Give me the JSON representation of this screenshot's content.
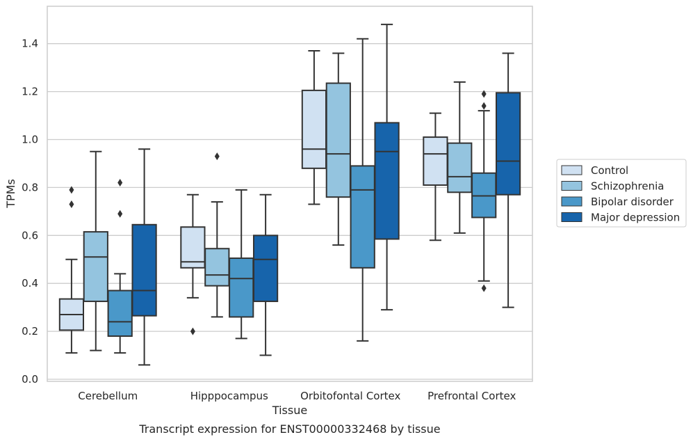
{
  "chart_data": {
    "type": "boxplot",
    "caption": "Transcript expression for ENST00000332468 by tissue",
    "xlabel": "Tissue",
    "ylabel": "TPMs",
    "ylim": [
      0.0,
      1.55
    ],
    "yticks": [
      "0.0",
      "0.2",
      "0.4",
      "0.6",
      "0.8",
      "1.0",
      "1.2",
      "1.4"
    ],
    "grid": "horizontal",
    "legend_position": "right",
    "categories": [
      "Cerebellum",
      "Hipppocampus",
      "Orbitofontal Cortex",
      "Prefrontal Cortex"
    ],
    "series": [
      {
        "name": "Control",
        "color": "#d0e1f2",
        "boxes": [
          {
            "whislo": 0.11,
            "q1": 0.205,
            "med": 0.27,
            "q3": 0.335,
            "whishi": 0.5,
            "fliers": [
              0.73,
              0.79
            ]
          },
          {
            "whislo": 0.34,
            "q1": 0.465,
            "med": 0.49,
            "q3": 0.635,
            "whishi": 0.77,
            "fliers": [
              0.2
            ]
          },
          {
            "whislo": 0.73,
            "q1": 0.88,
            "med": 0.96,
            "q3": 1.205,
            "whishi": 1.37,
            "fliers": []
          },
          {
            "whislo": 0.58,
            "q1": 0.81,
            "med": 0.94,
            "q3": 1.01,
            "whishi": 1.11,
            "fliers": []
          }
        ]
      },
      {
        "name": "Schizophrenia",
        "color": "#94c4df",
        "boxes": [
          {
            "whislo": 0.12,
            "q1": 0.325,
            "med": 0.51,
            "q3": 0.615,
            "whishi": 0.95,
            "fliers": []
          },
          {
            "whislo": 0.26,
            "q1": 0.39,
            "med": 0.435,
            "q3": 0.545,
            "whishi": 0.74,
            "fliers": [
              0.93
            ]
          },
          {
            "whislo": 0.56,
            "q1": 0.76,
            "med": 0.94,
            "q3": 1.235,
            "whishi": 1.36,
            "fliers": []
          },
          {
            "whislo": 0.61,
            "q1": 0.78,
            "med": 0.845,
            "q3": 0.985,
            "whishi": 1.24,
            "fliers": []
          }
        ]
      },
      {
        "name": "Bipolar disorder",
        "color": "#4a98c9",
        "boxes": [
          {
            "whislo": 0.11,
            "q1": 0.18,
            "med": 0.24,
            "q3": 0.37,
            "whishi": 0.44,
            "fliers": [
              0.69,
              0.82
            ]
          },
          {
            "whislo": 0.17,
            "q1": 0.26,
            "med": 0.42,
            "q3": 0.505,
            "whishi": 0.79,
            "fliers": []
          },
          {
            "whislo": 0.16,
            "q1": 0.465,
            "med": 0.79,
            "q3": 0.89,
            "whishi": 1.42,
            "fliers": []
          },
          {
            "whislo": 0.41,
            "q1": 0.675,
            "med": 0.765,
            "q3": 0.86,
            "whishi": 1.12,
            "fliers": [
              0.38,
              1.14,
              1.19
            ]
          }
        ]
      },
      {
        "name": "Major depression",
        "color": "#1764ab",
        "boxes": [
          {
            "whislo": 0.06,
            "q1": 0.265,
            "med": 0.37,
            "q3": 0.645,
            "whishi": 0.96,
            "fliers": []
          },
          {
            "whislo": 0.1,
            "q1": 0.325,
            "med": 0.5,
            "q3": 0.6,
            "whishi": 0.77,
            "fliers": []
          },
          {
            "whislo": 0.29,
            "q1": 0.585,
            "med": 0.95,
            "q3": 1.07,
            "whishi": 1.48,
            "fliers": []
          },
          {
            "whislo": 0.3,
            "q1": 0.77,
            "med": 0.91,
            "q3": 1.195,
            "whishi": 1.36,
            "fliers": []
          }
        ]
      }
    ]
  }
}
